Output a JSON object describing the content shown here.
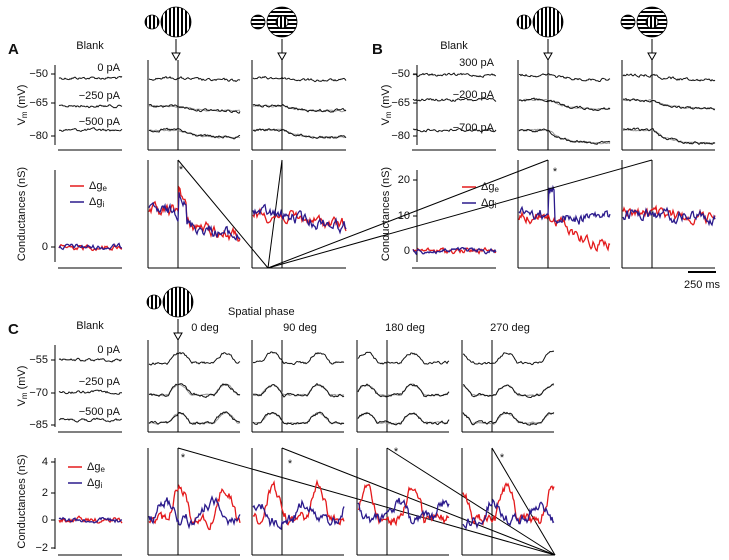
{
  "panels": [
    {
      "label": "A",
      "blank": "Blank",
      "currents": [
        "0 pA",
        "−250 pA",
        "−500 pA"
      ],
      "vm_label": {
        "main": "V",
        "sub": "m",
        "unit": "(mV)"
      },
      "vm_ticks": [
        "−50",
        "−65",
        "−80"
      ],
      "g_label": "Conductances (nS)",
      "g_ticks": [
        "0"
      ],
      "legend": [
        {
          "main": "Δg",
          "sub": "e"
        },
        {
          "main": "Δg",
          "sub": "i"
        }
      ],
      "asterisks": [
        "*"
      ]
    },
    {
      "label": "B",
      "blank": "Blank",
      "currents": [
        "300 pA",
        "−200 pA",
        "−700 pA"
      ],
      "vm_label": {
        "main": "V",
        "sub": "m",
        "unit": "(mV)"
      },
      "vm_ticks": [
        "−50",
        "−65",
        "−80"
      ],
      "g_label": "Conductances (nS)",
      "g_ticks": [
        "20",
        "10",
        "0"
      ],
      "legend": [
        {
          "main": "Δg",
          "sub": "e"
        },
        {
          "main": "Δg",
          "sub": "i"
        }
      ],
      "asterisks": [
        "*"
      ],
      "scale_bar": "250 ms"
    },
    {
      "label": "C",
      "blank": "Blank",
      "currents": [
        "0 pA",
        "−250 pA",
        "−500 pA"
      ],
      "vm_label": {
        "main": "V",
        "sub": "m",
        "unit": "(mV)"
      },
      "vm_ticks": [
        "−55",
        "−70",
        "−85"
      ],
      "g_label": "Conductances (nS)",
      "g_ticks": [
        "4",
        "2",
        "0",
        "−2"
      ],
      "legend": [
        {
          "main": "Δg",
          "sub": "e"
        },
        {
          "main": "Δg",
          "sub": "i"
        }
      ],
      "asterisks": [
        "*",
        "*",
        "*",
        "*"
      ],
      "phase_title": "Spatial phase",
      "phases": [
        "0 deg",
        "90 deg",
        "180 deg",
        "270 deg"
      ]
    }
  ]
}
